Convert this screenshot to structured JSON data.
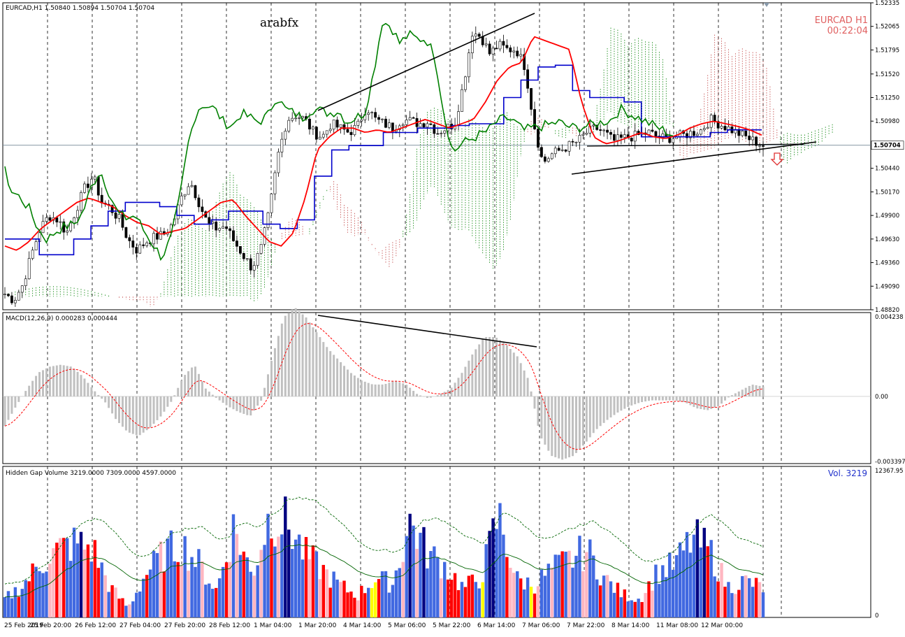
{
  "symbol_header": "EURCAD,H1  1.50840 1.50894 1.50704 1.50704",
  "watermark": "arabfx",
  "corner_title": "EURCAD  H1",
  "corner_timer": "00:22:04",
  "macd_header": "MACD(12,26,9) 0.000283 0.000444",
  "volume_header": "Hidden Gap Volume 3219.0000 7309.0000 4597.0000",
  "volume_badge": "Vol.  3219",
  "colors": {
    "tenkan": "#ff0000",
    "kijun": "#0000cc",
    "chikou": "#008000",
    "cloud_bull": "#008000",
    "cloud_bear": "#c04040",
    "candle": "#000000",
    "macd_hist": "#c0c0c0",
    "macd_signal": "#ff0000",
    "vol_blue": "#4169e1",
    "vol_navy": "#000080",
    "vol_red": "#ff0000",
    "vol_pink": "#ffb6c1",
    "vol_yellow": "#ffff00",
    "vol_green_line": "#006400",
    "grid": "#000000",
    "price_line": "#778899"
  },
  "chart_data": [
    {
      "type": "candlestick",
      "title": "EURCAD,H1",
      "x_tick_labels": [
        "25 Feb 2019",
        "25 Feb 20:00",
        "26 Feb 12:00",
        "27 Feb 04:00",
        "27 Feb 20:00",
        "28 Feb 12:00",
        "1 Mar 04:00",
        "1 Mar 20:00",
        "4 Mar 14:00",
        "5 Mar 06:00",
        "5 Mar 22:00",
        "6 Mar 14:00",
        "7 Mar 06:00",
        "7 Mar 22:00",
        "8 Mar 14:00",
        "11 Mar 08:00",
        "12 Mar 00:00"
      ],
      "y_tick_labels": [
        "1.52335",
        "1.52065",
        "1.51795",
        "1.51520",
        "1.51250",
        "1.50980",
        "1.50440",
        "1.50170",
        "1.49900",
        "1.49630",
        "1.49360",
        "1.49090",
        "1.48820"
      ],
      "ylim": [
        1.4882,
        1.52335
      ],
      "current_price": "1.50704",
      "close_path": [
        1.49,
        1.4893,
        1.491,
        1.4945,
        1.4975,
        1.499,
        1.4985,
        1.497,
        1.4995,
        1.502,
        1.5035,
        1.5005,
        1.4998,
        1.4985,
        1.4962,
        1.495,
        1.496,
        1.4965,
        1.4968,
        1.498,
        1.501,
        1.503,
        1.5005,
        1.498,
        1.4975,
        1.4978,
        1.496,
        1.4945,
        1.493,
        1.495,
        1.4995,
        1.506,
        1.51,
        1.5105,
        1.51,
        1.5085,
        1.508,
        1.5095,
        1.509,
        1.5085,
        1.5092,
        1.5115,
        1.51,
        1.5095,
        1.509,
        1.51,
        1.5098,
        1.5095,
        1.5098,
        1.5085,
        1.509,
        1.5095,
        1.514,
        1.52,
        1.5195,
        1.5175,
        1.5185,
        1.518,
        1.518,
        1.516,
        1.5095,
        1.505,
        1.506,
        1.5065,
        1.507,
        1.5075,
        1.5085,
        1.509,
        1.5085,
        1.5075,
        1.5078,
        1.508,
        1.5082,
        1.5085,
        1.508,
        1.5078,
        1.508,
        1.5082,
        1.5085,
        1.5088,
        1.51,
        1.5095,
        1.509,
        1.5085,
        1.508,
        1.5075,
        1.507
      ],
      "ichimoku": {
        "tenkan": [
          1.4955,
          1.495,
          1.496,
          1.4975,
          1.4985,
          1.4995,
          1.5005,
          1.501,
          1.5005,
          1.5,
          1.499,
          1.4982,
          1.4978,
          1.4968,
          1.4972,
          1.4975,
          1.4985,
          1.4995,
          1.5005,
          1.5008,
          1.499,
          1.4975,
          1.496,
          1.4955,
          1.497,
          1.501,
          1.5065,
          1.508,
          1.509,
          1.509,
          1.5085,
          1.5088,
          1.5085,
          1.509,
          1.5095,
          1.51,
          1.5095,
          1.509,
          1.5095,
          1.51,
          1.512,
          1.5145,
          1.516,
          1.5165,
          1.5195,
          1.519,
          1.5185,
          1.518,
          1.512,
          1.508,
          1.5072,
          1.5075,
          1.508,
          1.5085,
          1.508,
          1.5078,
          1.5082,
          1.509,
          1.5095,
          1.5098,
          1.5095,
          1.5092,
          1.5088,
          1.5082
        ],
        "kijun": [
          1.4963,
          1.4963,
          1.4945,
          1.4945,
          1.4963,
          1.4978,
          1.4995,
          1.5005,
          1.5005,
          1.5,
          1.499,
          1.498,
          1.4985,
          1.4995,
          1.4995,
          1.498,
          1.4975,
          1.4985,
          1.5035,
          1.5065,
          1.507,
          1.507,
          1.5085,
          1.5085,
          1.509,
          1.509,
          1.5093,
          1.5095,
          1.5095,
          1.5125,
          1.5145,
          1.516,
          1.5162,
          1.5133,
          1.5125,
          1.5125,
          1.512,
          1.508,
          1.508,
          1.508,
          1.508,
          1.5085,
          1.5088,
          1.5088
        ]
      },
      "annotations": [
        "trendline highs 1 Mar - 6 Mar",
        "triangle 7 Mar - 12 Mar",
        "down arrow"
      ]
    },
    {
      "type": "bar",
      "title": "MACD(12,26,9) 0.000283 0.000444",
      "y_tick_labels": [
        "0.004238",
        "0.00",
        "-0.003397"
      ],
      "ylim": [
        -0.003397,
        0.004238
      ],
      "macd": 0.000283,
      "signal": 0.000444,
      "histogram_path": [
        -0.0015,
        -0.0005,
        0.0004,
        0.0012,
        0.0015,
        0.0016,
        0.0015,
        0.001,
        0.0003,
        -0.0003,
        -0.0012,
        -0.0018,
        -0.002,
        -0.0016,
        -0.001,
        -0.0002,
        0.001,
        0.0016,
        0.0004,
        -0.0001,
        -0.0005,
        -0.0008,
        -0.001,
        -0.0002,
        0.002,
        0.004,
        0.0045,
        0.004,
        0.0032,
        0.0024,
        0.0018,
        0.0012,
        0.0008,
        0.0006,
        0.0006,
        0.0008,
        0.0006,
        0.0001,
        -0.0001,
        0.0001,
        0.0004,
        0.0012,
        0.0022,
        0.003,
        0.003,
        0.0026,
        0.002,
        0.0008,
        -0.002,
        -0.003,
        -0.0032,
        -0.003,
        -0.0024,
        -0.0017,
        -0.0012,
        -0.0008,
        -0.0005,
        -0.0003,
        -0.0002,
        -0.0002,
        -0.0002,
        -0.0003,
        -0.0006,
        -0.0007,
        -0.0005,
        0.0,
        0.0003,
        0.0006,
        0.0005
      ]
    },
    {
      "type": "bar",
      "title": "Hidden Gap Volume 3219.0000 7309.0000 4597.0000",
      "y_tick_labels": [
        "12367.95",
        "0"
      ],
      "ylim": [
        0,
        12367.95
      ],
      "values_header": [
        3219.0,
        7309.0,
        4597.0
      ],
      "pattern": [
        1500,
        2600,
        4400,
        5500,
        6100,
        5600,
        2400,
        800,
        3600,
        5200,
        6000,
        4400,
        2200,
        7500,
        3400,
        8300,
        7700,
        5200,
        3900,
        2600,
        1800,
        3200,
        2800,
        7900,
        5200,
        4200,
        2400,
        3300,
        8400,
        3100,
        2700,
        3900,
        4700,
        5500,
        3200,
        1900,
        1500,
        3700,
        4300,
        6500,
        5400,
        2500,
        3000,
        2400
      ]
    }
  ]
}
